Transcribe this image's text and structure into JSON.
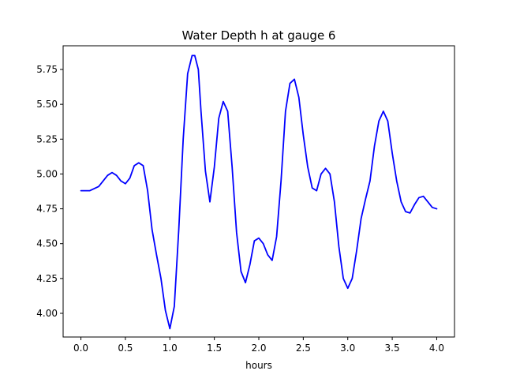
{
  "chart_data": {
    "type": "line",
    "title": "Water Depth h at gauge 6",
    "xlabel": "hours",
    "ylabel": "",
    "xlim": [
      -0.2,
      4.2
    ],
    "ylim": [
      3.83,
      5.92
    ],
    "grid": false,
    "legend": "none",
    "x_ticks": [
      0.0,
      0.5,
      1.0,
      1.5,
      2.0,
      2.5,
      3.0,
      3.5,
      4.0
    ],
    "x_tick_labels": [
      "0.0",
      "0.5",
      "1.0",
      "1.5",
      "2.0",
      "2.5",
      "3.0",
      "3.5",
      "4.0"
    ],
    "y_ticks": [
      4.0,
      4.25,
      4.5,
      4.75,
      5.0,
      5.25,
      5.5,
      5.75
    ],
    "y_tick_labels": [
      "4.00",
      "4.25",
      "4.50",
      "4.75",
      "5.00",
      "5.25",
      "5.50",
      "5.75"
    ],
    "series": [
      {
        "color": "#0000ff",
        "x": [
          0.0,
          0.1,
          0.2,
          0.3,
          0.35,
          0.4,
          0.45,
          0.5,
          0.55,
          0.6,
          0.65,
          0.7,
          0.75,
          0.8,
          0.85,
          0.9,
          0.95,
          1.0,
          1.05,
          1.1,
          1.15,
          1.2,
          1.25,
          1.28,
          1.32,
          1.35,
          1.4,
          1.45,
          1.5,
          1.55,
          1.6,
          1.65,
          1.7,
          1.75,
          1.8,
          1.85,
          1.9,
          1.95,
          2.0,
          2.05,
          2.1,
          2.15,
          2.2,
          2.25,
          2.3,
          2.35,
          2.4,
          2.45,
          2.5,
          2.55,
          2.6,
          2.65,
          2.7,
          2.75,
          2.8,
          2.85,
          2.9,
          2.95,
          3.0,
          3.05,
          3.1,
          3.15,
          3.2,
          3.25,
          3.3,
          3.35,
          3.4,
          3.45,
          3.5,
          3.55,
          3.6,
          3.65,
          3.7,
          3.75,
          3.8,
          3.85,
          3.9,
          3.95,
          4.0
        ],
        "y": [
          4.88,
          4.88,
          4.91,
          4.99,
          5.01,
          4.99,
          4.95,
          4.93,
          4.97,
          5.06,
          5.08,
          5.06,
          4.88,
          4.6,
          4.42,
          4.25,
          4.02,
          3.89,
          4.05,
          4.6,
          5.25,
          5.72,
          5.85,
          5.85,
          5.75,
          5.45,
          5.02,
          4.8,
          5.05,
          5.4,
          5.52,
          5.45,
          5.05,
          4.58,
          4.3,
          4.22,
          4.35,
          4.52,
          4.54,
          4.5,
          4.42,
          4.38,
          4.55,
          4.95,
          5.45,
          5.65,
          5.68,
          5.55,
          5.28,
          5.05,
          4.9,
          4.88,
          5.0,
          5.04,
          5.0,
          4.8,
          4.48,
          4.25,
          4.18,
          4.25,
          4.45,
          4.68,
          4.82,
          4.95,
          5.2,
          5.38,
          5.45,
          5.38,
          5.15,
          4.95,
          4.8,
          4.73,
          4.72,
          4.78,
          4.83,
          4.84,
          4.8,
          4.76,
          4.75
        ]
      }
    ]
  }
}
